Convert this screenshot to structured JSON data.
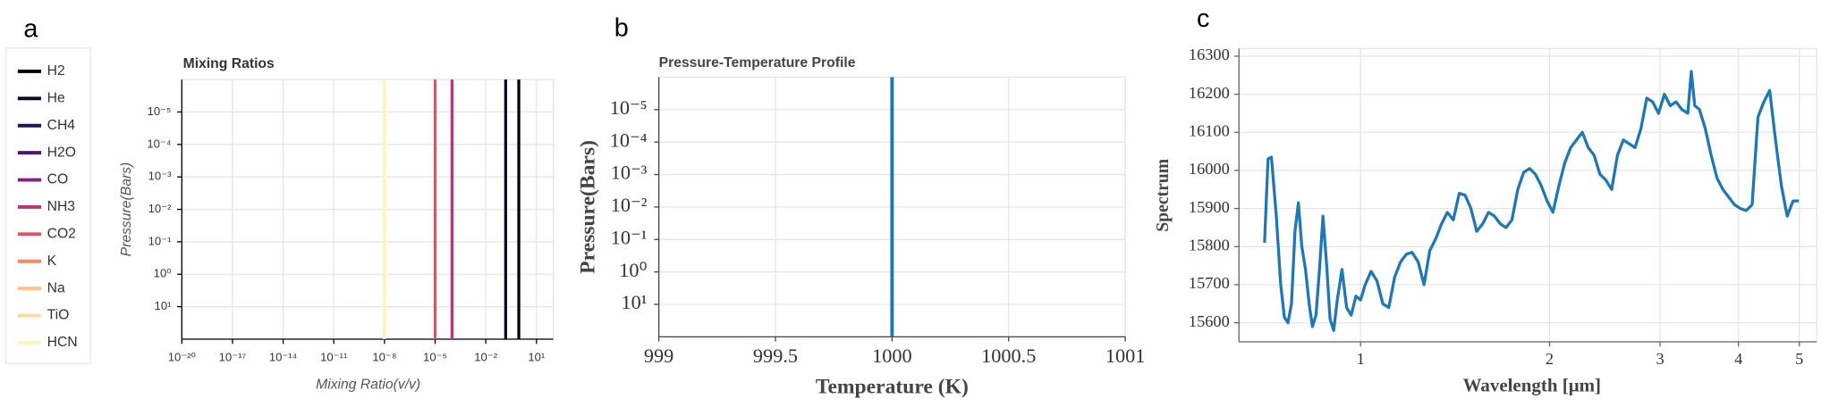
{
  "chart_data": [
    {
      "type": "vline",
      "panel_label": "a",
      "title": "Mixing Ratios",
      "x_label": "Mixing Ratio(v/v)",
      "y_label": "Pressure(Bars)",
      "xlog": true,
      "ylog": true,
      "grid": true,
      "legend": "outside-left",
      "xlim": [
        1e-20,
        100
      ],
      "ylim": [
        100,
        1e-06
      ],
      "xticks": [
        {
          "value": 1e-20,
          "label": "10⁻²⁰"
        },
        {
          "value": 1e-17,
          "label": "10⁻¹⁷"
        },
        {
          "value": 1e-14,
          "label": "10⁻¹⁴"
        },
        {
          "value": 1e-11,
          "label": "10⁻¹¹"
        },
        {
          "value": 1e-08,
          "label": "10⁻⁸"
        },
        {
          "value": 1e-05,
          "label": "10⁻⁵"
        },
        {
          "value": 0.01,
          "label": "10⁻²"
        },
        {
          "value": 10,
          "label": "10¹"
        }
      ],
      "yticks": [
        {
          "value": 10,
          "label": "10¹"
        },
        {
          "value": 1,
          "label": "10⁰"
        },
        {
          "value": 0.1,
          "label": "10⁻¹"
        },
        {
          "value": 0.01,
          "label": "10⁻²"
        },
        {
          "value": 0.001,
          "label": "10⁻³"
        },
        {
          "value": 0.0001,
          "label": "10⁻⁴"
        },
        {
          "value": 1e-05,
          "label": "10⁻⁵"
        }
      ],
      "series": [
        {
          "name": "H2",
          "color": "#000004",
          "value": 0.9
        },
        {
          "name": "He",
          "color": "#0c0826",
          "value": 0.15
        },
        {
          "name": "CH4",
          "color": "#2a115c",
          "value": null
        },
        {
          "name": "H2O",
          "color": "#51127c",
          "value": null
        },
        {
          "name": "CO",
          "color": "#812581",
          "value": null
        },
        {
          "name": "NH3",
          "color": "#b5367a",
          "value": 0.0001
        },
        {
          "name": "CO2",
          "color": "#e55064",
          "value": 1e-05
        },
        {
          "name": "K",
          "color": "#fb8761",
          "value": null
        },
        {
          "name": "Na",
          "color": "#fec287",
          "value": null
        },
        {
          "name": "TiO",
          "color": "#fdd99b",
          "value": 1e-08
        },
        {
          "name": "HCN",
          "color": "#fcf5bd",
          "value": 1e-08
        }
      ]
    },
    {
      "type": "line",
      "panel_label": "b",
      "title": "Pressure-Temperature Profile",
      "x_label": "Temperature (K)",
      "y_label": "Pressure(Bars)",
      "ylog": true,
      "grid": true,
      "color": "#1f77b4",
      "xlim": [
        999,
        1001
      ],
      "ylim": [
        100,
        1e-06
      ],
      "xticks": [
        999,
        999.5,
        1000,
        1000.5,
        1001
      ],
      "yticks": [
        {
          "value": 10,
          "label": "10¹"
        },
        {
          "value": 1,
          "label": "10⁰"
        },
        {
          "value": 0.1,
          "label": "10⁻¹"
        },
        {
          "value": 0.01,
          "label": "10⁻²"
        },
        {
          "value": 0.001,
          "label": "10⁻³"
        },
        {
          "value": 0.0001,
          "label": "10⁻⁴"
        },
        {
          "value": 1e-05,
          "label": "10⁻⁵"
        }
      ],
      "x": [
        1000,
        1000
      ],
      "values": [
        100,
        1e-06
      ]
    },
    {
      "type": "line",
      "panel_label": "c",
      "x_label": "Wavelength [μm]",
      "y_label": "Spectrum",
      "xlog": true,
      "grid": true,
      "color": "#1f77b4",
      "xlim": [
        0.64,
        5.33
      ],
      "ylim": [
        15550,
        16320
      ],
      "xticks": [
        1,
        2,
        3,
        4,
        5
      ],
      "yticks": [
        15600,
        15700,
        15800,
        15900,
        16000,
        16100,
        16200,
        16300
      ],
      "x": [
        0.703,
        0.712,
        0.721,
        0.734,
        0.746,
        0.756,
        0.766,
        0.776,
        0.786,
        0.796,
        0.806,
        0.817,
        0.828,
        0.838,
        0.849,
        0.86,
        0.871,
        0.883,
        0.894,
        0.906,
        0.918,
        0.934,
        0.95,
        0.966,
        0.983,
        1.0,
        1.017,
        1.039,
        1.062,
        1.085,
        1.109,
        1.133,
        1.158,
        1.183,
        1.208,
        1.235,
        1.262,
        1.289,
        1.317,
        1.346,
        1.375,
        1.405,
        1.436,
        1.467,
        1.499,
        1.531,
        1.565,
        1.599,
        1.634,
        1.669,
        1.705,
        1.742,
        1.78,
        1.819,
        1.859,
        1.899,
        1.94,
        1.982,
        2.025,
        2.07,
        2.115,
        2.161,
        2.208,
        2.256,
        2.305,
        2.355,
        2.406,
        2.458,
        2.512,
        2.566,
        2.622,
        2.679,
        2.737,
        2.797,
        2.857,
        2.919,
        2.983,
        3.048,
        3.114,
        3.181,
        3.25,
        3.321,
        3.364,
        3.407,
        3.466,
        3.541,
        3.618,
        3.697,
        3.777,
        3.859,
        3.943,
        4.028,
        4.116,
        4.205,
        4.296,
        4.39,
        4.485,
        4.582,
        4.682,
        4.783,
        4.887,
        4.993
      ],
      "values": [
        15810,
        16030,
        16035,
        15880,
        15700,
        15615,
        15600,
        15650,
        15840,
        15915,
        15800,
        15740,
        15650,
        15590,
        15620,
        15740,
        15880,
        15750,
        15610,
        15580,
        15660,
        15740,
        15640,
        15620,
        15670,
        15660,
        15700,
        15735,
        15710,
        15650,
        15640,
        15720,
        15760,
        15780,
        15785,
        15760,
        15700,
        15790,
        15820,
        15860,
        15890,
        15870,
        15940,
        15935,
        15900,
        15840,
        15860,
        15890,
        15880,
        15860,
        15850,
        15870,
        15950,
        15995,
        16005,
        15990,
        15960,
        15920,
        15890,
        15960,
        16020,
        16060,
        16080,
        16100,
        16060,
        16040,
        15990,
        15975,
        15950,
        16040,
        16080,
        16070,
        16060,
        16110,
        16190,
        16180,
        16150,
        16200,
        16170,
        16180,
        16160,
        16150,
        16260,
        16170,
        16160,
        16110,
        16040,
        15980,
        15950,
        15930,
        15910,
        15900,
        15895,
        15910,
        16140,
        16180,
        16210,
        16080,
        15960,
        15880,
        15920,
        15920
      ]
    }
  ]
}
